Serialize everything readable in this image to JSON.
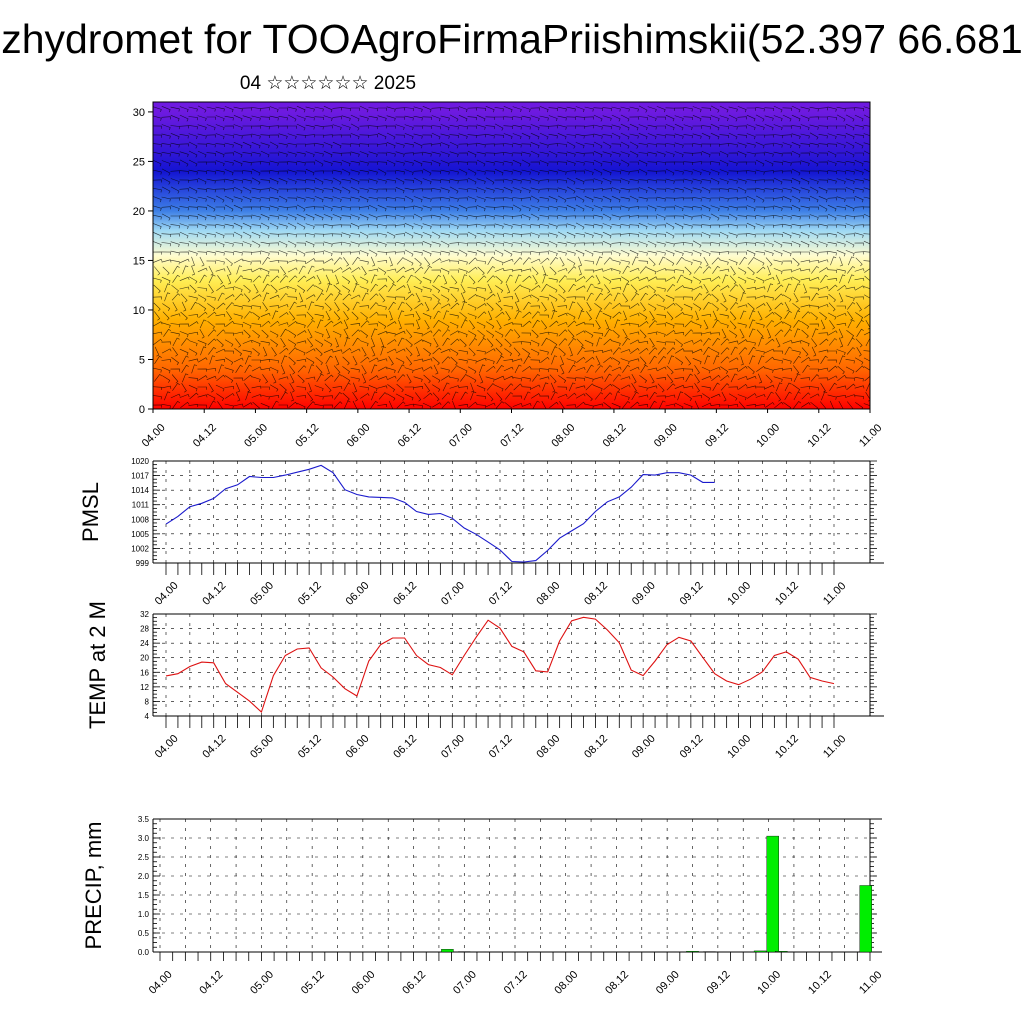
{
  "title": "zhydromet for TOOAgroFirmaPriishimskii(52.397 66.681",
  "subtitle": "04 ☆☆☆☆☆☆ 2025",
  "colors": {
    "pmsl_line": "#1a1acc",
    "temp_line": "#dd1111",
    "precip_bar": "#00ee00",
    "grid": "#000000"
  },
  "chart_data": [
    {
      "type": "heatmap",
      "name": "vertical-cross-section",
      "yticks": [
        0,
        5,
        10,
        15,
        20,
        25,
        30
      ],
      "ylim": [
        0,
        31
      ],
      "xticks": [
        "04.00",
        "04.12",
        "05.00",
        "05.12",
        "06.00",
        "06.12",
        "07.00",
        "07.12",
        "08.00",
        "08.12",
        "09.00",
        "09.12",
        "10.00",
        "10.12",
        "11.00"
      ],
      "colormap": [
        "#ff0000",
        "#ff6600",
        "#ffb000",
        "#ffee55",
        "#fffcd0",
        "#9fd9f4",
        "#3d7fe6",
        "#1414d2",
        "#6e1ae0"
      ],
      "colormap_levels": [
        0,
        4,
        9,
        13,
        15.5,
        18,
        20,
        24,
        30
      ],
      "overlay": "wind barbs"
    },
    {
      "type": "line",
      "ylabel": "PMSL",
      "yticks": [
        999,
        1002,
        1005,
        1008,
        1011,
        1014,
        1017,
        1020
      ],
      "ylim": [
        999,
        1020
      ],
      "xticks": [
        "04.00",
        "04.12",
        "05.00",
        "05.12",
        "06.00",
        "06.12",
        "07.00",
        "07.12",
        "08.00",
        "08.12",
        "09.00",
        "09.12",
        "10.00",
        "10.12",
        "11.00"
      ],
      "step_hours": 3,
      "values": [
        1007,
        1008.6,
        1010.6,
        1011.3,
        1012.3,
        1014.3,
        1015.1,
        1016.8,
        1016.6,
        1016.6,
        1017.1,
        1017.7,
        1018.3,
        1019.1,
        1017.6,
        1014.1,
        1013.1,
        1012.6,
        1012.5,
        1012.4,
        1011.5,
        1009.6,
        1009,
        1009.2,
        1008.2,
        1006.2,
        1004.9,
        1003.3,
        1001.7,
        999.3,
        999.2,
        999.5,
        1001.6,
        1004.1,
        1005.6,
        1007.1,
        1009.6,
        1011.6,
        1012.6,
        1014.6,
        1017.2,
        1017.1,
        1017.6,
        1017.6,
        1017.1,
        1015.6,
        1015.6
      ]
    },
    {
      "type": "line",
      "ylabel": "TEMP at 2 M",
      "yticks": [
        4,
        8,
        12,
        16,
        20,
        24,
        28,
        32
      ],
      "ylim": [
        4,
        32
      ],
      "xticks": [
        "04.00",
        "04.12",
        "05.00",
        "05.12",
        "06.00",
        "06.12",
        "07.00",
        "07.12",
        "08.00",
        "08.12",
        "09.00",
        "09.12",
        "10.00",
        "10.12",
        "11.00"
      ],
      "step_hours": 3,
      "values": [
        15,
        15.6,
        17.6,
        18.8,
        18.6,
        12.9,
        10.5,
        8.1,
        5.1,
        15.1,
        20.6,
        22.4,
        22.7,
        17.2,
        14.7,
        11.5,
        9.5,
        19.1,
        23.6,
        25.4,
        25.4,
        20.6,
        18.1,
        17.3,
        15.3,
        20.6,
        25.6,
        30.3,
        28.1,
        23.1,
        21.6,
        16.4,
        16.1,
        24.6,
        30.1,
        31.1,
        30.6,
        27.6,
        24.1,
        16.6,
        15.1,
        19.1,
        23.6,
        25.6,
        24.6,
        20.1,
        15.6,
        13.6,
        12.6,
        14.1,
        16.1,
        20.6,
        21.6,
        19.6,
        14.6,
        13.6,
        12.9
      ]
    },
    {
      "type": "bar",
      "ylabel": "PRECIP, mm",
      "yticks": [
        "0.0",
        "0.5",
        "1.0",
        "1.5",
        "2.0",
        "2.5",
        "3.0",
        "3.5"
      ],
      "ylim": [
        0,
        3.5
      ],
      "xticks": [
        "04.00",
        "04.12",
        "05.00",
        "05.12",
        "06.00",
        "06.12",
        "07.00",
        "07.12",
        "08.00",
        "08.12",
        "09.00",
        "09.12",
        "10.00",
        "10.12",
        "11.00"
      ],
      "bars": [
        {
          "x_hours": 68,
          "value": 0.07
        },
        {
          "x_hours": 72,
          "value": 0.01
        },
        {
          "x_hours": 126,
          "value": 0.02
        },
        {
          "x_hours": 130,
          "value": 0.01
        },
        {
          "x_hours": 142,
          "value": 0.03
        },
        {
          "x_hours": 145,
          "value": 3.05
        },
        {
          "x_hours": 147,
          "value": 0.02
        },
        {
          "x_hours": 167,
          "value": 1.75
        }
      ]
    }
  ]
}
